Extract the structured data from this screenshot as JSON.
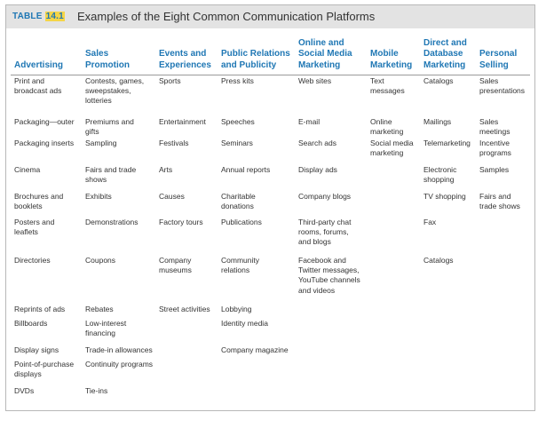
{
  "table": {
    "label_prefix": "TABLE",
    "label_number": "14.1",
    "title": "Examples of the Eight Common Communication Platforms",
    "columns": [
      [
        "Advertising"
      ],
      [
        "Sales",
        "Promotion"
      ],
      [
        "Events and",
        "Experiences"
      ],
      [
        "Public Relations",
        "and Publicity"
      ],
      [
        "Online and",
        "Social Media",
        "Marketing"
      ],
      [
        "Mobile",
        "Marketing"
      ],
      [
        "Direct and",
        "Database",
        "Marketing"
      ],
      [
        "Personal",
        "Selling"
      ]
    ],
    "cells": [
      [
        [
          "Print and",
          "broadcast ads"
        ],
        [
          "Contests, games,",
          "sweepstakes,",
          "lotteries"
        ],
        [
          "Sports"
        ],
        [
          "Press kits"
        ],
        [
          "Web sites"
        ],
        [
          "Text",
          "messages"
        ],
        [
          "Catalogs"
        ],
        [
          "Sales",
          "presentations"
        ]
      ],
      [
        [
          "Packaging—outer"
        ],
        [
          "Premiums and",
          "gifts"
        ],
        [
          "Entertainment"
        ],
        [
          "Speeches"
        ],
        [
          "E-mail"
        ],
        [
          "Online",
          "marketing"
        ],
        [
          "Mailings"
        ],
        [
          "Sales",
          "meetings"
        ]
      ],
      [
        [
          "Packaging inserts"
        ],
        [
          "Sampling"
        ],
        [
          "Festivals"
        ],
        [
          "Seminars"
        ],
        [
          "Search ads"
        ],
        [
          "Social media",
          "marketing"
        ],
        [
          "Telemarketing"
        ],
        [
          "Incentive",
          "programs"
        ]
      ],
      [
        [
          "Cinema"
        ],
        [
          "Fairs and trade",
          "shows"
        ],
        [
          "Arts"
        ],
        [
          "Annual reports"
        ],
        [
          "Display ads"
        ],
        [],
        [
          "Electronic",
          "shopping"
        ],
        [
          "Samples"
        ]
      ],
      [
        [
          "Brochures and",
          "booklets"
        ],
        [
          "Exhibits"
        ],
        [
          "Causes"
        ],
        [
          "Charitable",
          "donations"
        ],
        [
          "Company blogs"
        ],
        [],
        [
          "TV shopping"
        ],
        [
          "Fairs and",
          "trade shows"
        ]
      ],
      [
        [
          "Posters and",
          "leaflets"
        ],
        [
          "Demonstrations"
        ],
        [
          "Factory tours"
        ],
        [
          "Publications"
        ],
        [
          "Third-party chat",
          "rooms, forums,",
          "and blogs"
        ],
        [],
        [
          "Fax"
        ],
        []
      ],
      [
        [
          "Directories"
        ],
        [
          "Coupons"
        ],
        [
          "Company",
          "museums"
        ],
        [
          "Community",
          "relations"
        ],
        [
          "Facebook and",
          "Twitter messages,",
          "YouTube channels",
          "and videos"
        ],
        [],
        [
          "Catalogs"
        ],
        []
      ],
      [
        [
          "Reprints of ads"
        ],
        [
          "Rebates"
        ],
        [
          "Street activities"
        ],
        [
          "Lobbying"
        ],
        [],
        [],
        [],
        []
      ],
      [
        [
          "Billboards"
        ],
        [
          "Low-interest",
          "financing"
        ],
        [],
        [
          "Identity media"
        ],
        [],
        [],
        [],
        []
      ],
      [
        [
          "Display signs"
        ],
        [
          "Trade-in allowances"
        ],
        [],
        [
          "Company magazine"
        ],
        [],
        [],
        [],
        []
      ],
      [
        [
          "Point-of-purchase",
          "displays"
        ],
        [
          "Continuity programs"
        ],
        [],
        [],
        [],
        [],
        [],
        []
      ],
      [
        [
          "DVDs"
        ],
        [
          "Tie-ins"
        ],
        [],
        [],
        [],
        [],
        [],
        []
      ]
    ]
  }
}
